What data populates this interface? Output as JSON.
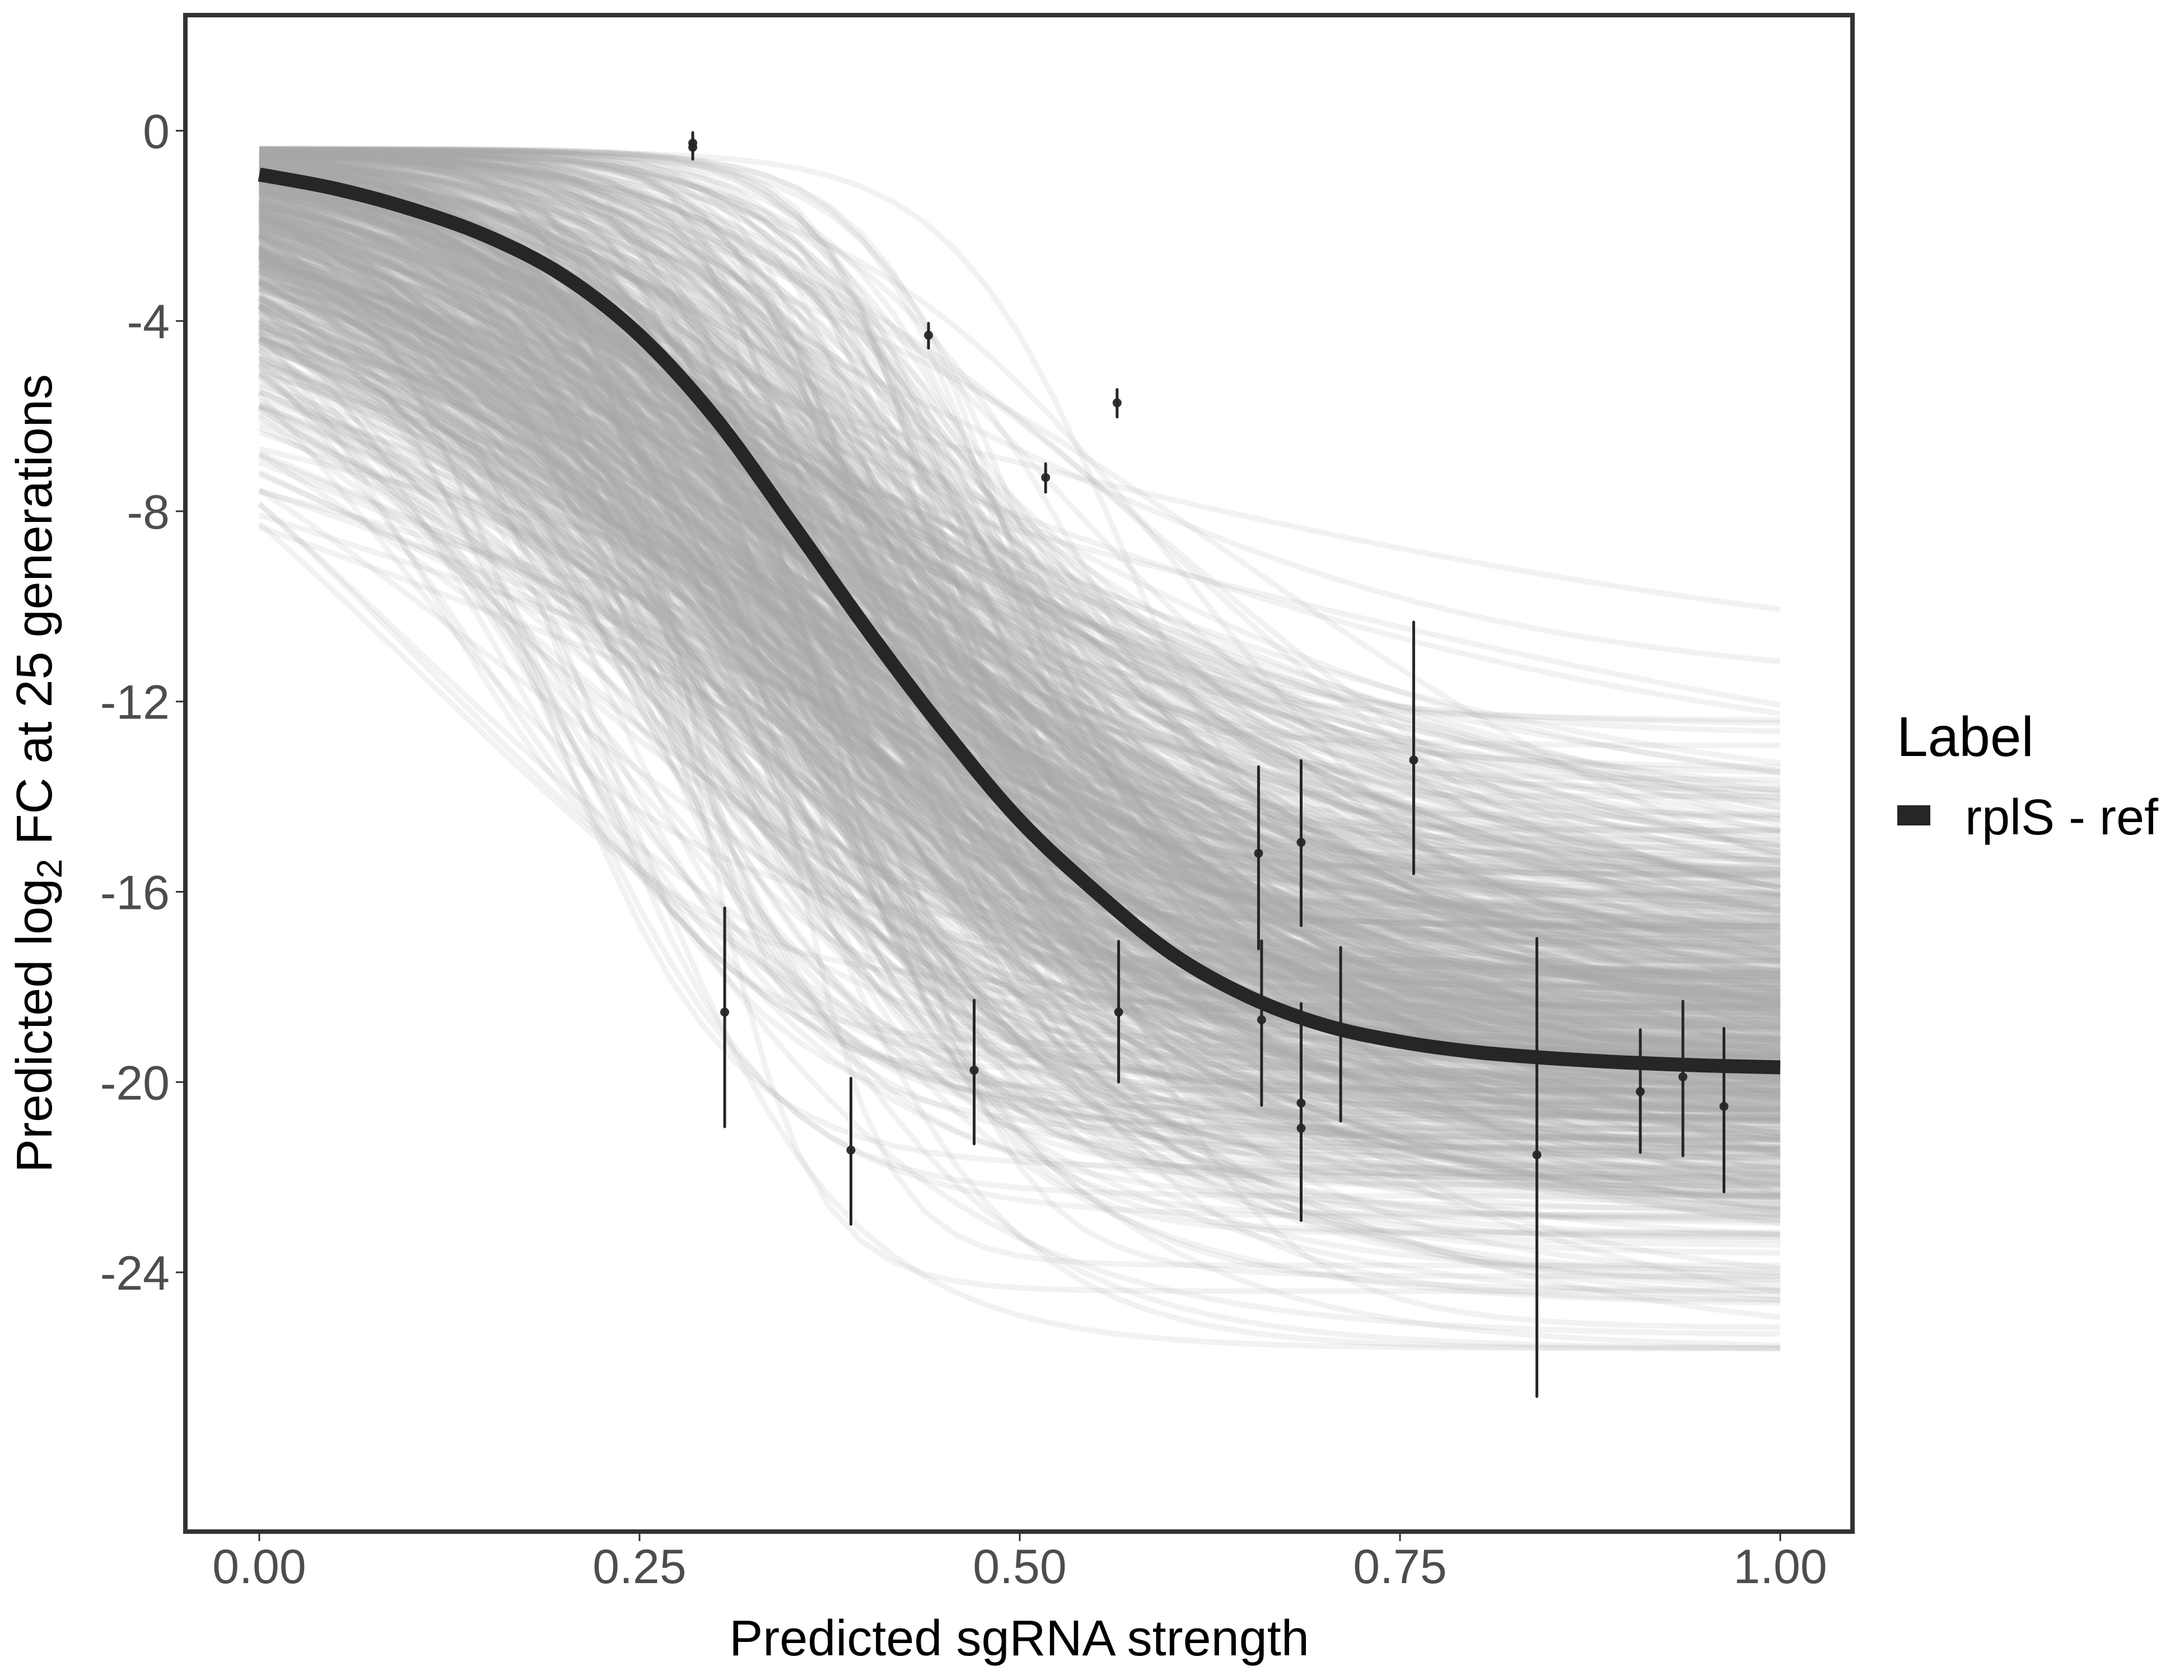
{
  "colors": {
    "background": "#FFFFFF",
    "axis_line": "#333333",
    "tick_label": "#4D4D4D",
    "title_text": "#000000",
    "fit_line": "#262626",
    "points": "#262626",
    "posterior_draws": "#A8A8A8"
  },
  "chart_data": {
    "type": "line",
    "title": "",
    "xlabel": "Predicted sgRNA strength",
    "ylabel": {
      "pre": "Predicted  log",
      "sub": "2",
      "post": " FC at 25 generations"
    },
    "xlim": [
      -0.0486,
      1.0475
    ],
    "ylim": [
      -29.45,
      2.43
    ],
    "grid": false,
    "x_ticks": [
      {
        "value": 0.0,
        "label": "0.00"
      },
      {
        "value": 0.25,
        "label": "0.25"
      },
      {
        "value": 0.5,
        "label": "0.50"
      },
      {
        "value": 0.75,
        "label": "0.75"
      },
      {
        "value": 1.0,
        "label": "1.00"
      }
    ],
    "y_ticks": [
      {
        "value": 0,
        "label": "0"
      },
      {
        "value": -4,
        "label": "-4"
      },
      {
        "value": -8,
        "label": "-8"
      },
      {
        "value": -12,
        "label": "-12"
      },
      {
        "value": -16,
        "label": "-16"
      },
      {
        "value": -20,
        "label": "-20"
      },
      {
        "value": -24,
        "label": "-24"
      }
    ],
    "legend": {
      "title": "Label",
      "position": "right",
      "entries": [
        {
          "label": "rplS - ref",
          "color": "#262626"
        }
      ]
    },
    "series": [
      {
        "name": "rplS - ref",
        "type": "line",
        "color": "#262626",
        "x": [
          0,
          0.05,
          0.1,
          0.15,
          0.2,
          0.25,
          0.3,
          0.35,
          0.4,
          0.45,
          0.5,
          0.55,
          0.6,
          0.65,
          0.7,
          0.75,
          0.8,
          0.85,
          0.9,
          0.95,
          1.0
        ],
        "y": [
          -0.92,
          -1.22,
          -1.65,
          -2.22,
          -3.05,
          -4.3,
          -6.05,
          -8.25,
          -10.5,
          -12.6,
          -14.5,
          -16.0,
          -17.3,
          -18.2,
          -18.8,
          -19.15,
          -19.37,
          -19.5,
          -19.59,
          -19.65,
          -19.69
        ]
      }
    ],
    "observations": {
      "type": "pointrange",
      "points": [
        {
          "x": 0.285,
          "y": -0.26,
          "lo": -0.5,
          "hi": -0.04
        },
        {
          "x": 0.285,
          "y": -0.35,
          "lo": -0.6,
          "hi": -0.1
        },
        {
          "x": 0.306,
          "y": -18.53,
          "lo": -20.94,
          "hi": -16.34
        },
        {
          "x": 0.389,
          "y": -21.43,
          "lo": -22.99,
          "hi": -19.92
        },
        {
          "x": 0.44,
          "y": -4.3,
          "lo": -4.57,
          "hi": -4.05
        },
        {
          "x": 0.47,
          "y": -19.75,
          "lo": -21.3,
          "hi": -18.28
        },
        {
          "x": 0.517,
          "y": -7.29,
          "lo": -7.6,
          "hi": -7.0
        },
        {
          "x": 0.564,
          "y": -5.72,
          "lo": -6.02,
          "hi": -5.44
        },
        {
          "x": 0.565,
          "y": -18.53,
          "lo": -20.0,
          "hi": -17.04
        },
        {
          "x": 0.657,
          "y": -15.19,
          "lo": -17.2,
          "hi": -13.37
        },
        {
          "x": 0.659,
          "y": -18.69,
          "lo": -20.49,
          "hi": -17.03
        },
        {
          "x": 0.685,
          "y": -14.96,
          "lo": -16.71,
          "hi": -13.24
        },
        {
          "x": 0.685,
          "y": -20.44,
          "lo": -22.56,
          "hi": -18.35
        },
        {
          "x": 0.685,
          "y": -20.97,
          "lo": -22.91,
          "hi": -18.79
        },
        {
          "x": 0.711,
          "y": -18.88,
          "lo": -20.82,
          "hi": -17.17
        },
        {
          "x": 0.759,
          "y": -13.23,
          "lo": -15.62,
          "hi": -10.33
        },
        {
          "x": 0.84,
          "y": -21.53,
          "lo": -26.61,
          "hi": -16.98
        },
        {
          "x": 0.908,
          "y": -20.2,
          "lo": -21.48,
          "hi": -18.9
        },
        {
          "x": 0.936,
          "y": -19.89,
          "lo": -21.55,
          "hi": -18.3
        },
        {
          "x": 0.963,
          "y": -20.51,
          "lo": -22.31,
          "hi": -18.87
        }
      ]
    },
    "posterior_draws": {
      "n": 700,
      "seed": 7,
      "model": "logistic",
      "x_range": [
        0,
        1
      ],
      "upper_mean": -0.37,
      "upper_sd": 0.05,
      "lower_mean": -19.3,
      "lower_sd": 2.4,
      "lower_range": [
        -25.6,
        -11.7
      ],
      "midpoint_mean": 0.36,
      "midpoint_sd": 0.085,
      "slope_median": 8,
      "slope_log_sd": 0.5,
      "opacity": 0.15
    }
  }
}
